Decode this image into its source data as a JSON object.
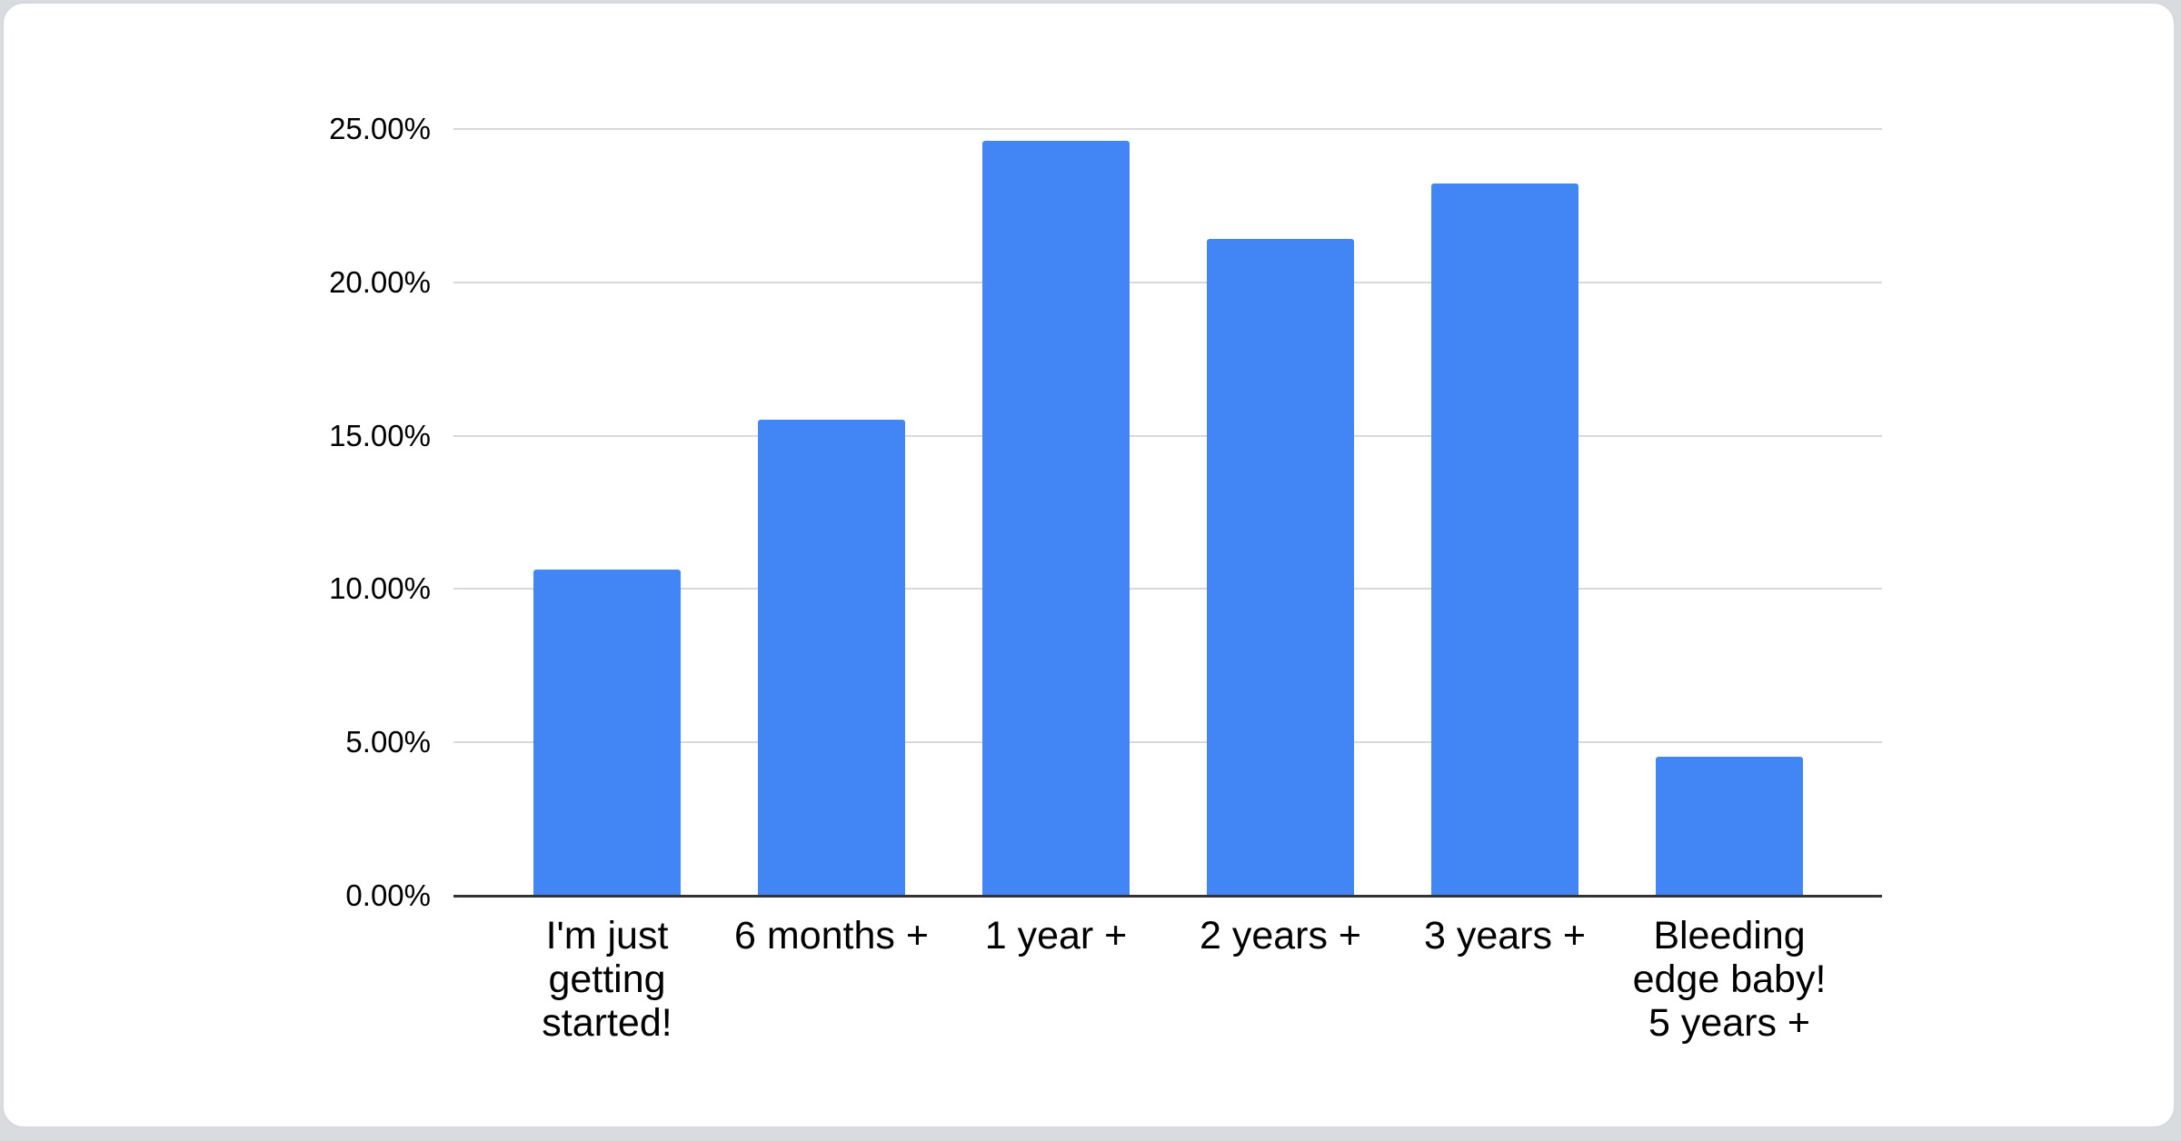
{
  "page": {
    "background_color": "#d9dcdf",
    "card_background": "#ffffff",
    "card_border_color": "#d5d8dc"
  },
  "chart_data": {
    "type": "bar",
    "title": "",
    "xlabel": "",
    "ylabel": "",
    "categories": [
      "I'm just\ngetting\nstarted!",
      "6 months +",
      "1 year +",
      "2 years +",
      "3 years +",
      "Bleeding\nedge baby!\n5 years +"
    ],
    "values": [
      10.6,
      15.5,
      24.6,
      21.4,
      23.2,
      4.5
    ],
    "unit": "%",
    "ylim": [
      0,
      25
    ],
    "grid": true,
    "legend": "none",
    "y_ticks": [
      {
        "value": 25,
        "label": "25.00%"
      },
      {
        "value": 20,
        "label": "20.00%"
      },
      {
        "value": 15,
        "label": "15.00%"
      },
      {
        "value": 10,
        "label": "10.00%"
      },
      {
        "value": 5,
        "label": "5.00%"
      },
      {
        "value": 0,
        "label": "0.00%"
      }
    ],
    "bar_color": "#4285f4",
    "gridline_color": "#d9d9d9",
    "axis_line_color": "#333333",
    "tick_text_color": "#000000"
  }
}
